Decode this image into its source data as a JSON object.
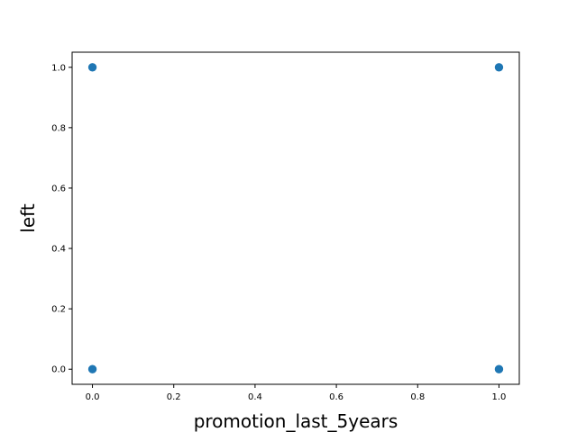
{
  "chart_data": {
    "type": "scatter",
    "title": "",
    "xlabel": "promotion_last_5years",
    "ylabel": "left",
    "xlim": [
      -0.05,
      1.05
    ],
    "ylim": [
      -0.05,
      1.05
    ],
    "x_ticks": [
      0.0,
      0.2,
      0.4,
      0.6,
      0.8,
      1.0
    ],
    "y_ticks": [
      0.0,
      0.2,
      0.4,
      0.6,
      0.8,
      1.0
    ],
    "x_tick_labels": [
      "0.0",
      "0.2",
      "0.4",
      "0.6",
      "0.8",
      "1.0"
    ],
    "y_tick_labels": [
      "0.0",
      "0.2",
      "0.4",
      "0.6",
      "0.8",
      "1.0"
    ],
    "grid": false,
    "legend": "none",
    "color": "#1f77b4",
    "points": [
      {
        "x": 0,
        "y": 1
      },
      {
        "x": 0,
        "y": 0
      },
      {
        "x": 1,
        "y": 1
      },
      {
        "x": 1,
        "y": 0
      }
    ]
  }
}
